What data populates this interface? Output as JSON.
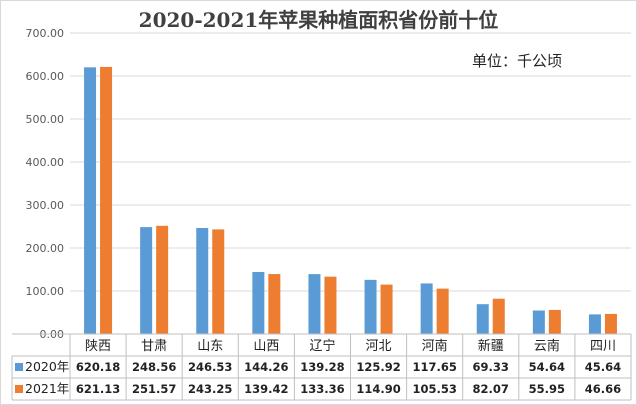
{
  "chart_data": {
    "type": "bar",
    "title": "2020-2021年苹果种植面积省份前十位",
    "unit_label": "单位：千公顷",
    "categories": [
      "陕西",
      "甘肃",
      "山东",
      "山西",
      "辽宁",
      "河北",
      "河南",
      "新疆",
      "云南",
      "四川"
    ],
    "series": [
      {
        "name": "2020年",
        "color": "#5b9bd5",
        "values": [
          620.18,
          248.56,
          246.53,
          144.26,
          139.28,
          125.92,
          117.65,
          69.33,
          54.64,
          45.64
        ]
      },
      {
        "name": "2021年",
        "color": "#ed7d31",
        "values": [
          621.13,
          251.57,
          243.25,
          139.42,
          133.36,
          114.9,
          105.53,
          82.07,
          55.95,
          46.66
        ]
      }
    ],
    "ylim": [
      0,
      700
    ],
    "yticks": [
      "0.00",
      "100.00",
      "200.00",
      "300.00",
      "400.00",
      "500.00",
      "600.00",
      "700.00"
    ],
    "table_rows": [
      [
        "620.18",
        "248.56",
        "246.53",
        "144.26",
        "139.28",
        "125.92",
        "117.65",
        "69.33",
        "54.64",
        "45.64"
      ],
      [
        "621.13",
        "251.57",
        "243.25",
        "139.42",
        "133.36",
        "114.90",
        "105.53",
        "82.07",
        "55.95",
        "46.66"
      ]
    ],
    "grid": true,
    "legend": "data-table"
  }
}
